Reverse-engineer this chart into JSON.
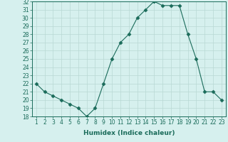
{
  "x": [
    1,
    2,
    3,
    4,
    5,
    6,
    7,
    8,
    9,
    10,
    11,
    12,
    13,
    14,
    15,
    16,
    17,
    18,
    19,
    20,
    21,
    22,
    23
  ],
  "y": [
    22,
    21,
    20.5,
    20,
    19.5,
    19,
    18,
    19,
    22,
    25,
    27,
    28,
    30,
    31,
    32,
    31.5,
    31.5,
    31.5,
    28,
    25,
    21,
    21,
    20
  ],
  "xlabel": "Humidex (Indice chaleur)",
  "ylabel": "",
  "ylim": [
    18,
    32
  ],
  "xlim_min": 0.5,
  "xlim_max": 23.5,
  "yticks": [
    18,
    19,
    20,
    21,
    22,
    23,
    24,
    25,
    26,
    27,
    28,
    29,
    30,
    31,
    32
  ],
  "xticks": [
    1,
    2,
    3,
    4,
    5,
    6,
    7,
    8,
    9,
    10,
    11,
    12,
    13,
    14,
    15,
    16,
    17,
    18,
    19,
    20,
    21,
    22,
    23
  ],
  "line_color": "#1a6b5a",
  "marker": "D",
  "marker_size": 2.5,
  "bg_color": "#d6f0ee",
  "grid_color": "#b8d8d4",
  "label_color": "#1a6b5a",
  "tick_color": "#1a6b5a",
  "font_size_axis": 6.5,
  "font_size_ticks": 5.5
}
